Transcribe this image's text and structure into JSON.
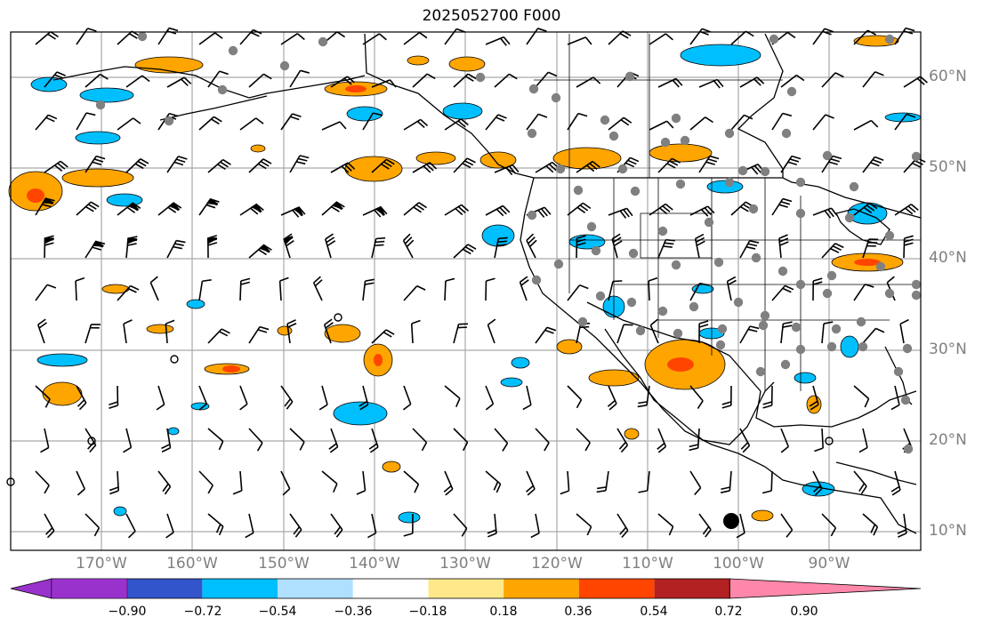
{
  "title": "2025052700 F000",
  "lat_labels": [
    "60°N",
    "50°N",
    "40°N",
    "30°N",
    "20°N",
    "10°N"
  ],
  "lon_labels": [
    "170°W",
    "160°W",
    "150°W",
    "140°W",
    "130°W",
    "120°W",
    "110°W",
    "100°W",
    "90°W"
  ],
  "colorbar": {
    "tick_labels": [
      "−0.90",
      "−0.72",
      "−0.54",
      "−0.36",
      "−0.18",
      "0.18",
      "0.36",
      "0.54",
      "0.72",
      "0.90"
    ],
    "colors": [
      "#9932cc",
      "#000080",
      "#3355cc",
      "#00bfff",
      "#b0e0ff",
      "#ffffff",
      "#ffe88a",
      "#ffa500",
      "#ff4500",
      "#b22222",
      "#ff88aa"
    ]
  },
  "colors": {
    "grid": "#a9a9a9",
    "coast": "#000000",
    "positive": "#ffa500",
    "positive_strong": "#ff4500",
    "negative": "#00bfff",
    "station": "#808080"
  }
}
